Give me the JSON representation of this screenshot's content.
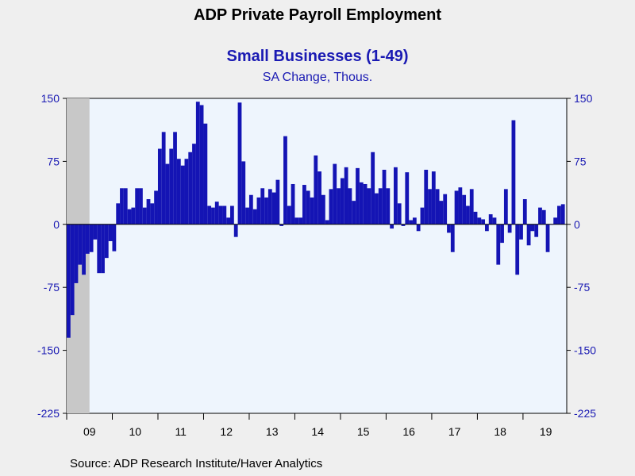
{
  "chart_data": {
    "type": "bar",
    "title": "ADP Private Payroll Employment",
    "subtitle": "Small Businesses (1-49)",
    "ylabel": "SA Change, Thous.",
    "source": "Source:  ADP Research Institute/Haver Analytics",
    "ylim": [
      -225,
      150
    ],
    "yticks": [
      150,
      75,
      0,
      -75,
      -150,
      -225
    ],
    "x_start": "2009-01",
    "xticks": [
      "09",
      "10",
      "11",
      "12",
      "13",
      "14",
      "15",
      "16",
      "17",
      "18",
      "19"
    ],
    "recession": {
      "from": "2009-01",
      "to": "2009-06"
    },
    "bar_color": "#1414b4",
    "values": [
      -135,
      -108,
      -70,
      -48,
      -60,
      -35,
      -33,
      -18,
      -58,
      -58,
      -40,
      -20,
      -32,
      25,
      43,
      43,
      18,
      20,
      43,
      43,
      20,
      30,
      25,
      40,
      90,
      110,
      72,
      90,
      110,
      78,
      70,
      78,
      86,
      96,
      146,
      142,
      120,
      22,
      20,
      27,
      22,
      22,
      8,
      22,
      -15,
      145,
      75,
      20,
      35,
      18,
      32,
      43,
      32,
      42,
      38,
      53,
      -2,
      105,
      22,
      48,
      8,
      8,
      47,
      40,
      32,
      82,
      63,
      35,
      5,
      42,
      72,
      43,
      55,
      68,
      43,
      28,
      67,
      50,
      48,
      43,
      86,
      37,
      43,
      65,
      43,
      -5,
      68,
      25,
      -2,
      62,
      5,
      8,
      -8,
      20,
      65,
      42,
      63,
      42,
      28,
      36,
      -10,
      -33,
      40,
      44,
      35,
      22,
      42,
      15,
      8,
      6,
      -8,
      12,
      8,
      -48,
      -22,
      42,
      -10,
      124,
      -60,
      -18,
      30,
      -25,
      -8,
      -15,
      20,
      17,
      -33,
      0,
      8,
      22,
      24
    ]
  }
}
